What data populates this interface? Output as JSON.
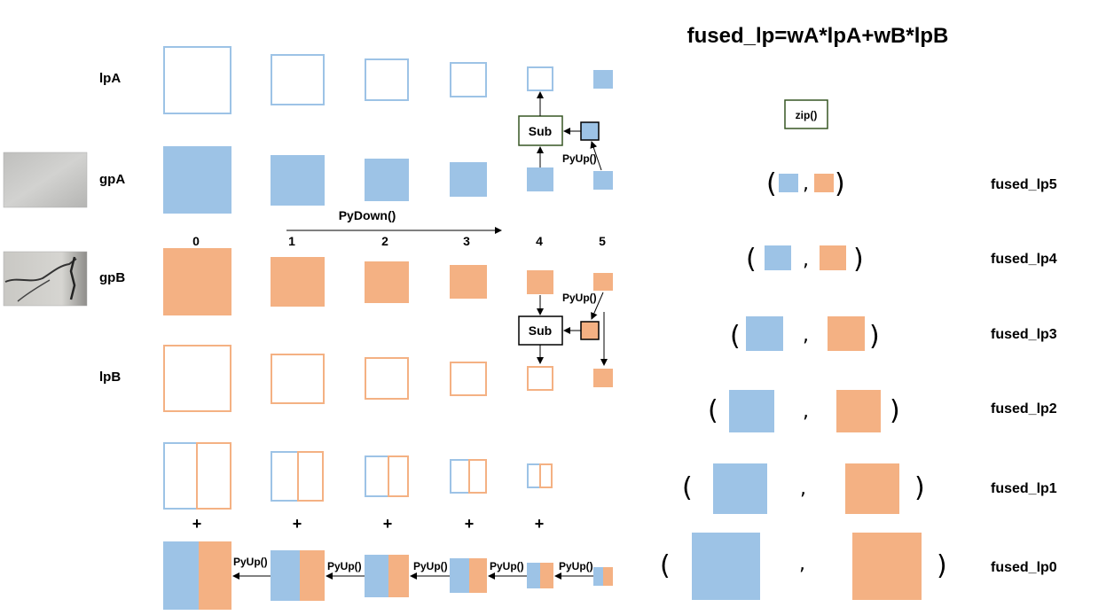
{
  "title": "fused_lp=wA*lpA+wB*lpB",
  "rows": {
    "lpA": "lpA",
    "gpA": "gpA",
    "gpB": "gpB",
    "lpB": "lpB"
  },
  "levels": [
    "0",
    "1",
    "2",
    "3",
    "4",
    "5"
  ],
  "pydown_label": "PyDown()",
  "sub_label": "Sub",
  "pyup_label": "PyUp()",
  "zip_label": "zip()",
  "plus": "+",
  "fused_labels": [
    "fused_lp5",
    "fused_lp4",
    "fused_lp3",
    "fused_lp2",
    "fused_lp1",
    "fused_lp0"
  ],
  "paren_open": "(",
  "paren_close": ")",
  "comma": ",",
  "colors": {
    "blue": "#9dc3e6",
    "blue_outline": "#9dc3e6",
    "orange": "#f4b183",
    "orange_outline": "#f4b183",
    "zip_border": "#375623",
    "sub_a_border": "#375623",
    "sub_b_border": "#000000"
  }
}
